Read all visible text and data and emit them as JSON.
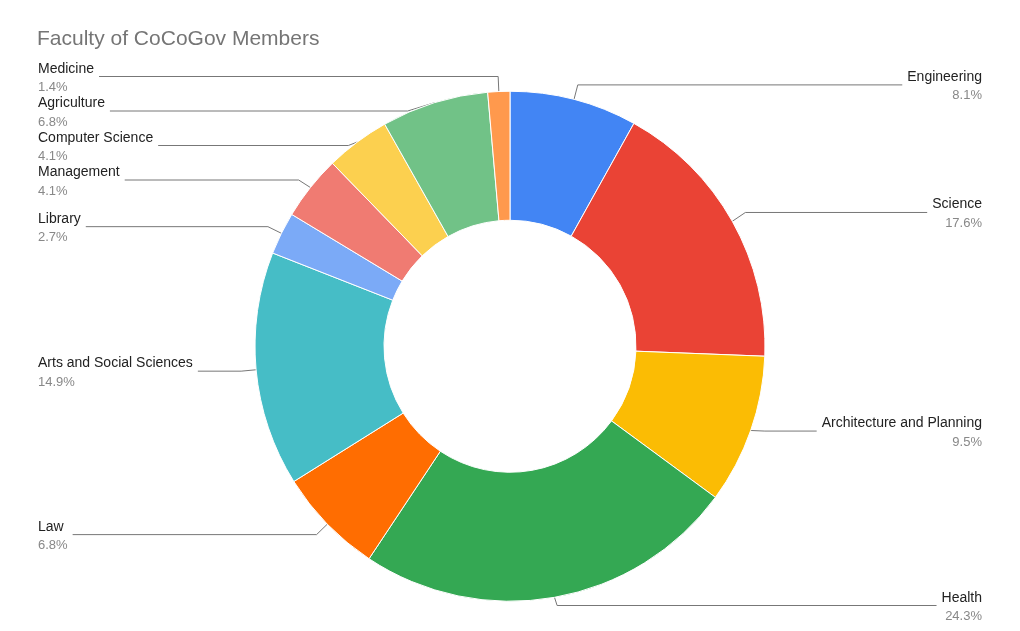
{
  "chart_data": {
    "type": "donut",
    "title": "Faculty of CoCoGov Members",
    "categories": [
      "Engineering",
      "Science",
      "Architecture and Planning",
      "Health",
      "Law",
      "Arts and Social Sciences",
      "Library",
      "Management",
      "Computer Science",
      "Agriculture",
      "Medicine"
    ],
    "values": [
      8.1,
      17.6,
      9.5,
      24.3,
      6.8,
      14.9,
      2.7,
      4.1,
      4.1,
      6.8,
      1.4
    ],
    "value_labels": [
      "8.1%",
      "17.6%",
      "9.5%",
      "24.3%",
      "6.8%",
      "14.9%",
      "2.7%",
      "4.1%",
      "4.1%",
      "6.8%",
      "1.4%"
    ],
    "colors": [
      "#4285f4",
      "#ea4335",
      "#fbbc04",
      "#34a853",
      "#ff6d01",
      "#46bdc6",
      "#7baaf7",
      "#f07b72",
      "#fcd04f",
      "#71c287",
      "#ff994d"
    ]
  }
}
